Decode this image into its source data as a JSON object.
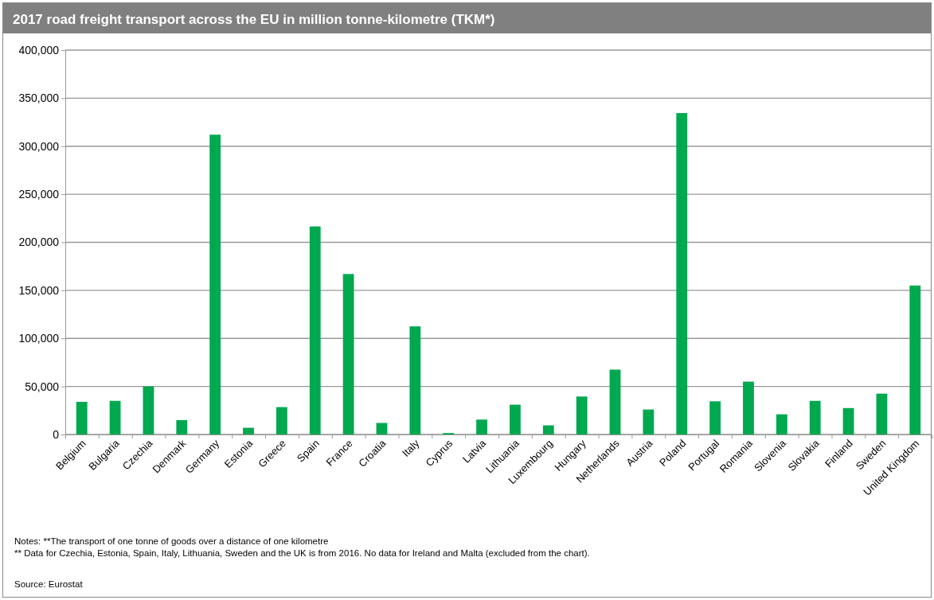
{
  "chart_data": {
    "type": "bar",
    "title": "2017 road freight transport across the EU in million tonne-kilometre (TKM*)",
    "categories": [
      "Belgium",
      "Bulgaria",
      "Czechia",
      "Denmark",
      "Germany",
      "Estonia",
      "Greece",
      "Spain",
      "France",
      "Croatia",
      "Italy",
      "Cyprus",
      "Latvia",
      "Lithuania",
      "Luxembourg",
      "Hungary",
      "Netherlands",
      "Austria",
      "Poland",
      "Portugal",
      "Romania",
      "Slovenia",
      "Slovakia",
      "Finland",
      "Sweden",
      "United Kingdom"
    ],
    "values": [
      34000,
      35000,
      50000,
      15000,
      312000,
      7000,
      28500,
      216500,
      167000,
      12000,
      112500,
      1500,
      15500,
      31000,
      9500,
      39500,
      67500,
      26000,
      334500,
      34500,
      55000,
      21000,
      35000,
      27500,
      42500,
      155000
    ],
    "color": "#00a84f",
    "ylim": [
      0,
      400000
    ],
    "yticks": [
      {
        "value": 0,
        "label": "0"
      },
      {
        "value": 50000,
        "label": "50,000"
      },
      {
        "value": 100000,
        "label": "100,000"
      },
      {
        "value": 150000,
        "label": "150,000"
      },
      {
        "value": 200000,
        "label": "200,000"
      },
      {
        "value": 250000,
        "label": "250,000"
      },
      {
        "value": 300000,
        "label": "300,000"
      },
      {
        "value": 350000,
        "label": "350,000"
      },
      {
        "value": 400000,
        "label": "400,000"
      }
    ],
    "grid": "y",
    "annotations": [
      "Notes: **The transport of one tonne of goods over a distance of one kilometre",
      "** Data for Czechia, Estonia, Spain, Italy, Lithuania, Sweden and the UK is from 2016. No data for Ireland and Malta (excluded from the chart).",
      "Source: Eurostat"
    ]
  }
}
